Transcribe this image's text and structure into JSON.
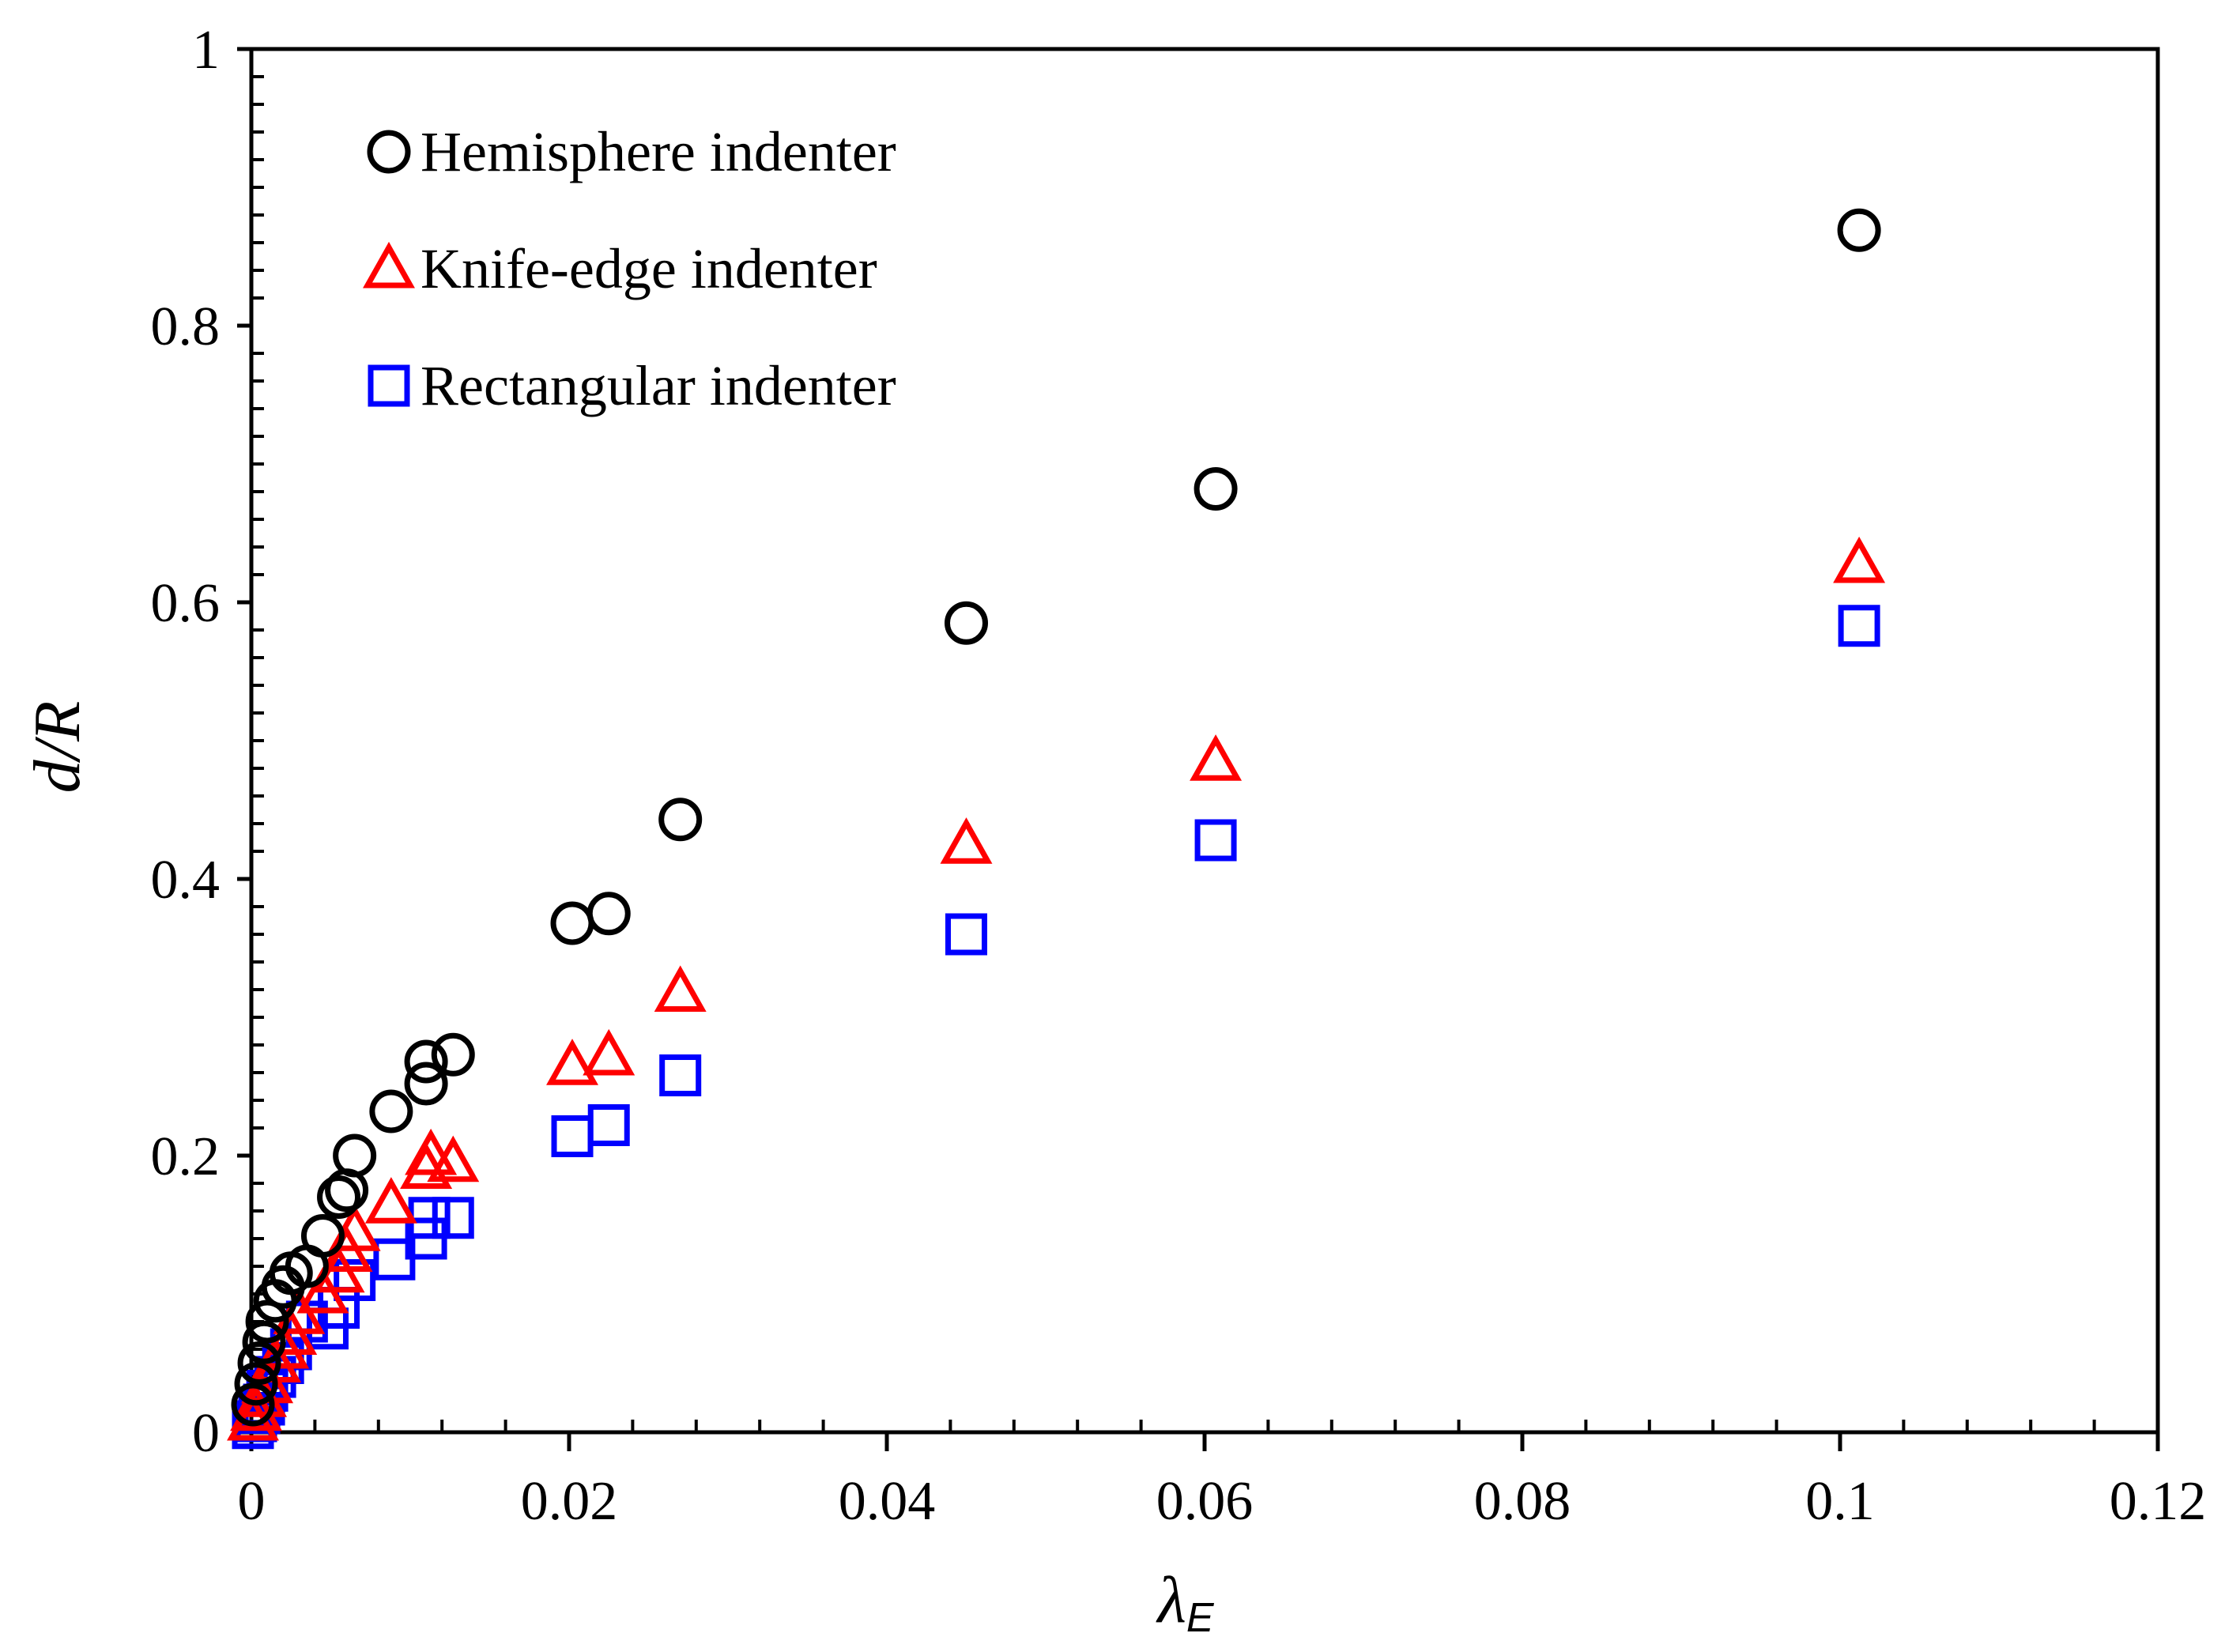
{
  "chart_data": {
    "type": "scatter",
    "title": "",
    "xlabel": "λ",
    "xlabel_subscript": "E",
    "ylabel": "d/R",
    "xlim": [
      0,
      0.12
    ],
    "ylim": [
      0,
      1
    ],
    "x_ticks": [
      0,
      0.02,
      0.04,
      0.06,
      0.08,
      0.1,
      0.12
    ],
    "x_tick_labels": [
      "0",
      "0.02",
      "0.04",
      "0.06",
      "0.08",
      "0.1",
      "0.12"
    ],
    "y_ticks": [
      0,
      0.2,
      0.4,
      0.6,
      0.8,
      1
    ],
    "y_tick_labels": [
      "0",
      "0.2",
      "0.4",
      "0.6",
      "0.8",
      "1"
    ],
    "grid": false,
    "legend_position": "top-left",
    "series": [
      {
        "name": "Hemisphere indenter",
        "marker": "circle",
        "color": "#000000",
        "points": [
          [
            0.0001,
            0.02
          ],
          [
            0.0003,
            0.035
          ],
          [
            0.0005,
            0.05
          ],
          [
            0.0008,
            0.065
          ],
          [
            0.001,
            0.08
          ],
          [
            0.0015,
            0.095
          ],
          [
            0.002,
            0.105
          ],
          [
            0.0025,
            0.115
          ],
          [
            0.0035,
            0.12
          ],
          [
            0.0045,
            0.142
          ],
          [
            0.0055,
            0.17
          ],
          [
            0.006,
            0.175
          ],
          [
            0.0065,
            0.2
          ],
          [
            0.0088,
            0.232
          ],
          [
            0.011,
            0.252
          ],
          [
            0.011,
            0.268
          ],
          [
            0.0127,
            0.273
          ],
          [
            0.0202,
            0.368
          ],
          [
            0.0225,
            0.375
          ],
          [
            0.027,
            0.443
          ],
          [
            0.045,
            0.585
          ],
          [
            0.0607,
            0.682
          ],
          [
            0.1012,
            0.869
          ]
        ]
      },
      {
        "name": "Knife-edge indenter",
        "marker": "triangle",
        "color": "#ff0000",
        "points": [
          [
            0.0001,
            0.008
          ],
          [
            0.0003,
            0.015
          ],
          [
            0.0006,
            0.025
          ],
          [
            0.001,
            0.035
          ],
          [
            0.0015,
            0.05
          ],
          [
            0.002,
            0.06
          ],
          [
            0.0025,
            0.07
          ],
          [
            0.003,
            0.085
          ],
          [
            0.0045,
            0.1
          ],
          [
            0.0055,
            0.115
          ],
          [
            0.006,
            0.13
          ],
          [
            0.0065,
            0.145
          ],
          [
            0.0088,
            0.165
          ],
          [
            0.011,
            0.19
          ],
          [
            0.0113,
            0.2
          ],
          [
            0.0127,
            0.195
          ],
          [
            0.0202,
            0.265
          ],
          [
            0.0225,
            0.272
          ],
          [
            0.027,
            0.318
          ],
          [
            0.045,
            0.425
          ],
          [
            0.0607,
            0.485
          ],
          [
            0.1012,
            0.628
          ]
        ]
      },
      {
        "name": "Rectangular indenter",
        "marker": "square",
        "color": "#0000ff",
        "points": [
          [
            0.0001,
            0.003
          ],
          [
            0.0003,
            0.008
          ],
          [
            0.0005,
            0.014
          ],
          [
            0.0008,
            0.02
          ],
          [
            0.001,
            0.03
          ],
          [
            0.0015,
            0.04
          ],
          [
            0.002,
            0.05
          ],
          [
            0.0025,
            0.06
          ],
          [
            0.0035,
            0.08
          ],
          [
            0.0048,
            0.075
          ],
          [
            0.0055,
            0.09
          ],
          [
            0.0065,
            0.11
          ],
          [
            0.009,
            0.125
          ],
          [
            0.011,
            0.14
          ],
          [
            0.0112,
            0.155
          ],
          [
            0.0127,
            0.155
          ],
          [
            0.0202,
            0.214
          ],
          [
            0.0225,
            0.222
          ],
          [
            0.027,
            0.258
          ],
          [
            0.045,
            0.36
          ],
          [
            0.0607,
            0.428
          ],
          [
            0.1012,
            0.583
          ]
        ]
      }
    ]
  }
}
